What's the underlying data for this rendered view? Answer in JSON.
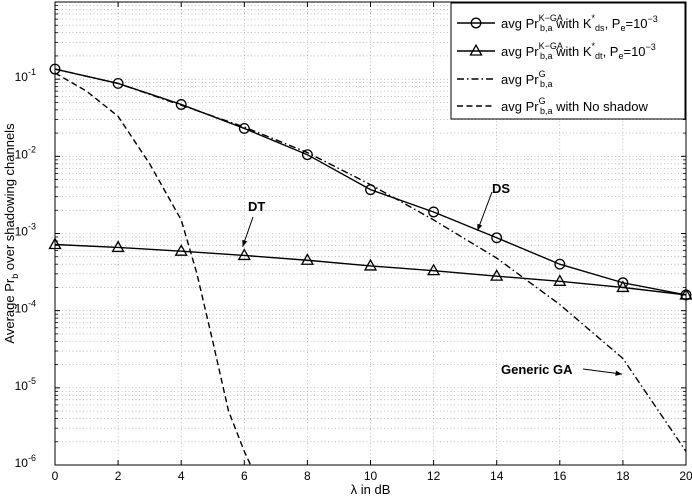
{
  "chart_data": {
    "type": "line",
    "yscale": "log",
    "xlabel": "λ in dB",
    "ylabel": "Average Pr_b over shadowing channels",
    "xlim": [
      0,
      20
    ],
    "ylim": [
      1e-06,
      1
    ],
    "grid": true,
    "x_ticks": [
      "0",
      "2",
      "4",
      "6",
      "8",
      "10",
      "12",
      "14",
      "16",
      "18",
      "20"
    ],
    "y_ticks": [
      {
        "base": "10",
        "exp": "-6"
      },
      {
        "base": "10",
        "exp": "-5"
      },
      {
        "base": "10",
        "exp": "-4"
      },
      {
        "base": "10",
        "exp": "-3"
      },
      {
        "base": "10",
        "exp": "-2"
      },
      {
        "base": "10",
        "exp": "-1"
      }
    ],
    "legend_position": "top-right",
    "series": [
      {
        "name": "avg Pr b,a K-GA with K ds*, Pe=10^-3",
        "style": "solid",
        "marker": "circle",
        "legend": {
          "prefix": "avg Pr",
          "sup": "K−GA",
          "sub": "b,a",
          "mid": " with K",
          "mid_sup": "*",
          "mid_sub": "ds",
          "suffix": ", P",
          "suffix_sub": "e",
          "tail": "=10",
          "tail_sup": "−3"
        },
        "x": [
          0,
          2,
          4,
          6,
          8,
          10,
          12,
          14,
          16,
          18,
          20
        ],
        "y": [
          0.135,
          0.088,
          0.047,
          0.023,
          0.0105,
          0.0037,
          0.0019,
          0.00088,
          0.0004,
          0.00023,
          0.00016
        ]
      },
      {
        "name": "avg Pr b,a K-GA with K dt*, Pe=10^-3",
        "style": "solid",
        "marker": "triangle",
        "legend": {
          "prefix": "avg Pr",
          "sup": "K−GA",
          "sub": "b,a",
          "mid": " with K",
          "mid_sup": "*",
          "mid_sub": "dt",
          "suffix": ", P",
          "suffix_sub": "e",
          "tail": "=10",
          "tail_sup": "−3"
        },
        "x": [
          0,
          2,
          4,
          6,
          8,
          10,
          12,
          14,
          16,
          18,
          20
        ],
        "y": [
          0.00072,
          0.00066,
          0.00059,
          0.00052,
          0.00045,
          0.00038,
          0.00033,
          0.00028,
          0.00024,
          0.0002,
          0.00016
        ]
      },
      {
        "name": "avg Pr b,a G",
        "style": "dashdot",
        "marker": "none",
        "legend": {
          "prefix": "avg Pr",
          "sup": "G",
          "sub": "b,a",
          "mid": "",
          "mid_sup": "",
          "mid_sub": "",
          "suffix": "",
          "suffix_sub": "",
          "tail": "",
          "tail_sup": ""
        },
        "x": [
          0,
          2,
          4,
          6,
          8,
          10,
          12,
          14,
          16,
          18,
          20
        ],
        "y": [
          0.135,
          0.088,
          0.046,
          0.024,
          0.0112,
          0.0043,
          0.0015,
          0.00048,
          0.00012,
          2.4e-05,
          1.5e-06
        ]
      },
      {
        "name": "avg Pr b,a G with No shadow",
        "style": "dashed",
        "marker": "none",
        "legend": {
          "prefix": "avg Pr",
          "sup": "G",
          "sub": "b,a",
          "mid": " with No shadow",
          "mid_sup": "",
          "mid_sub": "",
          "suffix": "",
          "suffix_sub": "",
          "tail": "",
          "tail_sup": ""
        },
        "x": [
          0,
          1,
          2,
          3,
          4,
          4.5,
          5,
          5.5,
          6,
          6.2
        ],
        "y": [
          0.12,
          0.07,
          0.033,
          0.008,
          0.0015,
          0.0003,
          4e-05,
          5e-06,
          1.5e-06,
          1e-06
        ]
      }
    ],
    "annotations": [
      {
        "text": "DT",
        "target_x": 6.2,
        "target_y": 0.00053
      },
      {
        "text": "DS",
        "target_x": 13.2,
        "target_y": 0.0013
      },
      {
        "text": "Generic GA",
        "target_x": 18.1,
        "target_y": 1.6e-05
      }
    ]
  }
}
